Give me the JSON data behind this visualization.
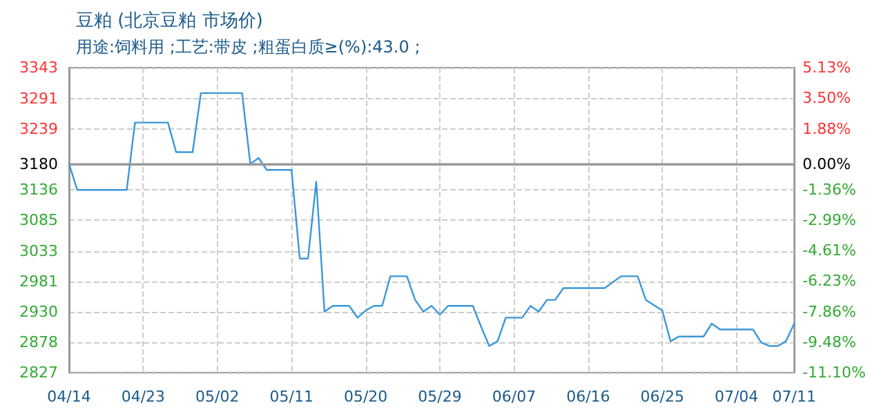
{
  "chart_data": {
    "type": "line",
    "title": "豆粕 (北京豆粕 市场价)",
    "subtitle": "用途:饲料用 ;工艺:带皮 ;粗蛋白质≥(%):43.0 ;",
    "x": [
      "--04-14",
      "--04-15",
      "--04-21",
      "--04-22",
      "--04-26",
      "--04-27",
      "--04-29",
      "--04-30",
      "--05-05",
      "--05-06",
      "--05-07",
      "--05-08",
      "--05-11",
      "--05-12",
      "--05-13",
      "--05-14",
      "--05-15",
      "--05-16",
      "--05-18",
      "--05-19",
      "--05-20",
      "--05-21",
      "--05-22",
      "--05-23",
      "--05-25",
      "--05-26",
      "--05-27",
      "--05-28",
      "--05-29",
      "--05-30",
      "--06-02",
      "--06-03",
      "--06-04",
      "--06-05",
      "--06-06",
      "--06-08",
      "--06-09",
      "--06-10",
      "--06-11",
      "--06-12",
      "--06-13",
      "--06-18",
      "--06-20",
      "--06-22",
      "--06-23",
      "--06-25",
      "--06-26",
      "--06-27",
      "--06-30",
      "--07-01",
      "--07-02",
      "--07-06",
      "--07-07",
      "--07-08",
      "--07-09",
      "--07-10",
      "--07-11"
    ],
    "series": [
      {
        "color": "#3a97d8",
        "values": [
          3180,
          3136,
          3136,
          3250,
          3250,
          3200,
          3200,
          3300,
          3300,
          3180,
          3190,
          3170,
          3170,
          3020,
          3020,
          3150,
          2930,
          2940,
          2940,
          2920,
          2932,
          2940,
          2940,
          2990,
          2990,
          2950,
          2930,
          2940,
          2925,
          2940,
          2940,
          2905,
          2872,
          2880,
          2920,
          2920,
          2940,
          2930,
          2950,
          2950,
          2970,
          2970,
          2990,
          2990,
          2950,
          2932,
          2880,
          2888,
          2888,
          2910,
          2900,
          2900,
          2878,
          2872,
          2872,
          2880,
          2910
        ]
      }
    ],
    "xlim": [
      "--04-14",
      "--07-11"
    ],
    "xticks": [
      {
        "value": "--04-14",
        "label": "04/14"
      },
      {
        "value": "--04-23",
        "label": "04/23"
      },
      {
        "value": "--05-02",
        "label": "05/02"
      },
      {
        "value": "--05-11",
        "label": "05/11"
      },
      {
        "value": "--05-20",
        "label": "05/20"
      },
      {
        "value": "--05-29",
        "label": "05/29"
      },
      {
        "value": "--06-07",
        "label": "06/07"
      },
      {
        "value": "--06-16",
        "label": "06/16"
      },
      {
        "value": "--06-25",
        "label": "06/25"
      },
      {
        "value": "--07-04",
        "label": "07/04"
      },
      {
        "value": "--07-11",
        "label": "07/11"
      }
    ],
    "ylim": [
      2827,
      3343
    ],
    "yticks": [
      2827,
      2878,
      2930,
      2981,
      3033,
      3085,
      3136,
      3180,
      3239,
      3291,
      3343
    ],
    "y2lim": [
      -11.1,
      5.13
    ],
    "y2ticks": [
      {
        "value": -11.1,
        "label": "-11.10%"
      },
      {
        "value": -9.48,
        "label": "-9.48%"
      },
      {
        "value": -7.86,
        "label": "-7.86%"
      },
      {
        "value": -6.23,
        "label": "-6.23%"
      },
      {
        "value": -4.61,
        "label": "-4.61%"
      },
      {
        "value": -2.99,
        "label": "-2.99%"
      },
      {
        "value": -1.36,
        "label": "-1.36%"
      },
      {
        "value": 0,
        "label": "0.00%"
      },
      {
        "value": 1.88,
        "label": "1.88%"
      },
      {
        "value": 3.5,
        "label": "3.50%"
      },
      {
        "value": 5.13,
        "label": "5.13%"
      }
    ],
    "ref_lines": [
      {
        "axis": "y",
        "value": 3180,
        "color": "#999999",
        "line_style": "solid"
      }
    ],
    "grid": true,
    "marker": "none",
    "line_style": "solid"
  }
}
